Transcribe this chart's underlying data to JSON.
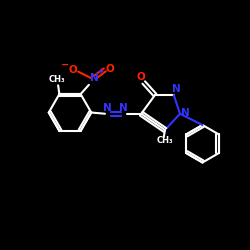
{
  "bg_color": "#000000",
  "bond_color": "#ffffff",
  "N_color": "#3333ff",
  "O_color": "#ff2200",
  "lw": 1.5,
  "lw_thick": 1.5,
  "xlim": [
    0,
    10
  ],
  "ylim": [
    0,
    10
  ]
}
